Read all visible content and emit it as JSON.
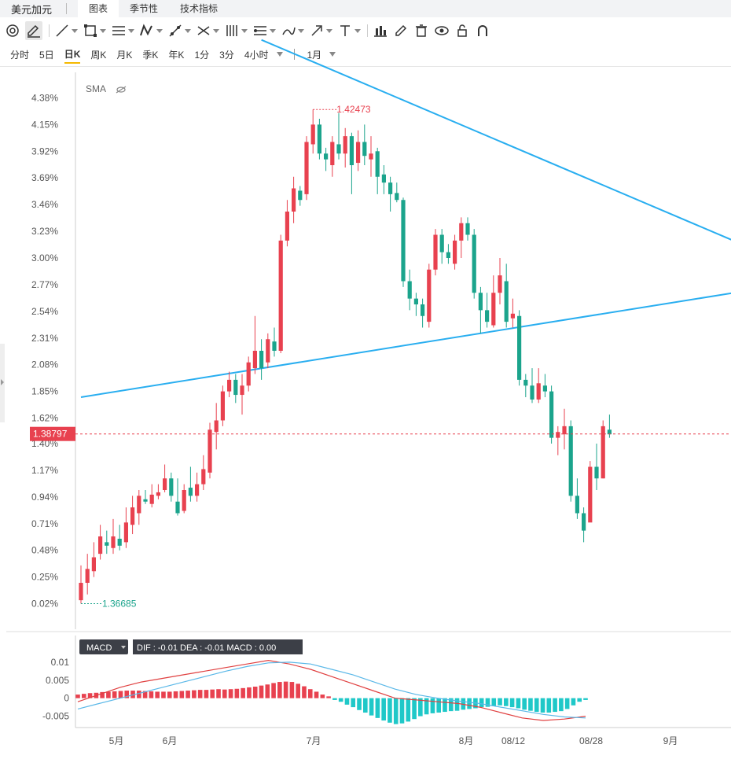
{
  "header": {
    "title": "美元加元",
    "tabs": [
      {
        "label": "图表",
        "active": true
      },
      {
        "label": "季节性",
        "active": false
      },
      {
        "label": "技术指标",
        "active": false
      }
    ]
  },
  "toolbar": {
    "icons": [
      "target-icon",
      "pencil-icon",
      "line-tool-icon",
      "rectangle-icon",
      "parallel-lines-icon",
      "zigzag-icon",
      "ray-icon",
      "cross-lines-icon",
      "pitchfork-icon",
      "fibonacci-icon",
      "brush-icon",
      "arrow-icon",
      "text-icon",
      "bar-chart-icon",
      "edit-icon",
      "trash-icon",
      "eye-icon",
      "lock-icon",
      "magnet-icon"
    ]
  },
  "periods": {
    "items": [
      "分时",
      "5日",
      "日K",
      "周K",
      "月K",
      "季K",
      "年K",
      "1分",
      "3分",
      "4小时"
    ],
    "active": "日K",
    "month_select": "1月"
  },
  "indicator_label": "SMA",
  "price_label": "1.38797",
  "macd_panel": {
    "label": "MACD",
    "readout": "DIF : -0.01   DEA : -0.01   MACD : 0.00"
  },
  "colors": {
    "up": "#e8414f",
    "down": "#1ba48c",
    "trendline": "#29aef0",
    "dif": "#e04040",
    "dea": "#5ab8e8"
  },
  "chart_data": [
    {
      "type": "candlestick",
      "y_axis": {
        "unit": "%",
        "ticks": [
          "4.38%",
          "4.15%",
          "3.92%",
          "3.69%",
          "3.46%",
          "3.23%",
          "3.00%",
          "2.77%",
          "2.54%",
          "2.31%",
          "2.08%",
          "1.85%",
          "1.62%",
          "1.40%",
          "1.17%",
          "0.94%",
          "0.71%",
          "0.48%",
          "0.25%",
          "0.02%"
        ],
        "ylim": [
          -0.2,
          4.6
        ]
      },
      "x_axis": {
        "ticks": [
          "5月",
          "6月",
          "7月",
          "8月",
          "08/12",
          "08/28",
          "9月"
        ]
      },
      "annotations": {
        "high": "1.42473",
        "low": "1.36685",
        "last": "1.38797"
      },
      "candles": [
        [
          0.05,
          0.2,
          0.35,
          0.02
        ],
        [
          0.2,
          0.32,
          0.45,
          0.1
        ],
        [
          0.3,
          0.42,
          0.55,
          0.25
        ],
        [
          0.45,
          0.6,
          0.7,
          0.4
        ],
        [
          0.55,
          0.52,
          0.65,
          0.45
        ],
        [
          0.5,
          0.6,
          0.75,
          0.45
        ],
        [
          0.58,
          0.52,
          0.7,
          0.48
        ],
        [
          0.55,
          0.72,
          0.85,
          0.5
        ],
        [
          0.7,
          0.85,
          0.95,
          0.62
        ],
        [
          0.8,
          0.95,
          1.0,
          0.7
        ],
        [
          0.92,
          0.9,
          1.0,
          0.88
        ],
        [
          0.88,
          0.96,
          1.05,
          0.85
        ],
        [
          0.95,
          0.98,
          1.05,
          0.92
        ],
        [
          1.0,
          1.1,
          1.22,
          0.98
        ],
        [
          1.1,
          0.95,
          1.15,
          0.9
        ],
        [
          0.9,
          0.8,
          1.1,
          0.78
        ],
        [
          0.82,
          1.0,
          1.05,
          0.8
        ],
        [
          1.02,
          0.95,
          1.2,
          0.9
        ],
        [
          0.95,
          1.05,
          1.15,
          0.9
        ],
        [
          1.05,
          1.18,
          1.3,
          1.0
        ],
        [
          1.15,
          1.52,
          1.58,
          1.1
        ],
        [
          1.5,
          1.6,
          1.75,
          1.35
        ],
        [
          1.6,
          1.85,
          1.9,
          1.55
        ],
        [
          1.85,
          1.95,
          2.02,
          1.8
        ],
        [
          1.95,
          1.82,
          2.0,
          1.75
        ],
        [
          1.82,
          1.9,
          2.0,
          1.65
        ],
        [
          1.9,
          2.1,
          2.15,
          1.85
        ],
        [
          2.05,
          2.2,
          2.5,
          2.0
        ],
        [
          2.2,
          2.05,
          2.3,
          1.95
        ],
        [
          2.1,
          2.3,
          2.35,
          2.05
        ],
        [
          2.28,
          2.2,
          2.4,
          2.15
        ],
        [
          2.2,
          3.15,
          3.2,
          2.18
        ],
        [
          3.15,
          3.4,
          3.5,
          3.1
        ],
        [
          3.4,
          3.6,
          3.7,
          3.3
        ],
        [
          3.58,
          3.5,
          3.62,
          3.45
        ],
        [
          3.55,
          4.0,
          4.05,
          3.5
        ],
        [
          3.98,
          4.15,
          4.28,
          3.9
        ],
        [
          4.15,
          3.9,
          4.2,
          3.85
        ],
        [
          3.9,
          3.85,
          3.95,
          3.75
        ],
        [
          3.8,
          4.0,
          4.05,
          3.7
        ],
        [
          3.98,
          3.9,
          4.25,
          3.85
        ],
        [
          3.9,
          4.05,
          4.12,
          3.78
        ],
        [
          4.05,
          3.8,
          4.08,
          3.55
        ],
        [
          3.82,
          4.0,
          4.1,
          3.75
        ],
        [
          4.0,
          3.88,
          4.15,
          3.8
        ],
        [
          3.85,
          3.9,
          4.05,
          3.7
        ],
        [
          3.92,
          3.7,
          3.95,
          3.55
        ],
        [
          3.72,
          3.65,
          3.8,
          3.55
        ],
        [
          3.65,
          3.55,
          3.7,
          3.4
        ],
        [
          3.56,
          3.5,
          3.65,
          3.48
        ],
        [
          3.5,
          2.8,
          3.52,
          2.75
        ],
        [
          2.8,
          2.65,
          2.9,
          2.55
        ],
        [
          2.65,
          2.6,
          2.7,
          2.5
        ],
        [
          2.6,
          2.5,
          2.65,
          2.4
        ],
        [
          2.45,
          2.9,
          2.95,
          2.4
        ],
        [
          2.9,
          3.2,
          3.25,
          2.85
        ],
        [
          3.2,
          3.05,
          3.25,
          2.95
        ],
        [
          3.05,
          3.0,
          3.12,
          2.95
        ],
        [
          2.95,
          3.15,
          3.2,
          2.9
        ],
        [
          3.15,
          3.3,
          3.35,
          3.0
        ],
        [
          3.3,
          3.2,
          3.35,
          3.15
        ],
        [
          3.2,
          2.7,
          3.25,
          2.65
        ],
        [
          2.7,
          2.55,
          2.75,
          2.35
        ],
        [
          2.55,
          2.45,
          2.7,
          2.4
        ],
        [
          2.42,
          2.7,
          2.85,
          2.4
        ],
        [
          2.7,
          2.85,
          3.0,
          2.6
        ],
        [
          2.8,
          2.45,
          2.95,
          2.4
        ],
        [
          2.48,
          2.52,
          2.65,
          2.4
        ],
        [
          2.5,
          1.95,
          2.55,
          1.9
        ],
        [
          1.95,
          1.9,
          2.0,
          1.8
        ],
        [
          1.9,
          1.78,
          2.05,
          1.75
        ],
        [
          1.78,
          1.92,
          2.05,
          1.75
        ],
        [
          1.9,
          1.85,
          2.0,
          1.8
        ],
        [
          1.85,
          1.45,
          1.9,
          1.4
        ],
        [
          1.45,
          1.5,
          1.55,
          1.3
        ],
        [
          1.48,
          1.55,
          1.7,
          1.35
        ],
        [
          1.55,
          0.95,
          1.6,
          0.9
        ],
        [
          0.95,
          0.8,
          1.1,
          0.75
        ],
        [
          0.8,
          0.65,
          0.85,
          0.55
        ],
        [
          0.72,
          1.2,
          1.25,
          0.8
        ],
        [
          1.2,
          1.1,
          1.4,
          1.0
        ],
        [
          1.1,
          1.55,
          1.6,
          1.1
        ],
        [
          1.52,
          1.48,
          1.65,
          1.45
        ]
      ],
      "trendlines": [
        {
          "from": [
            0,
            1.8
          ],
          "to": [
            152,
            3.15
          ]
        },
        {
          "from": [
            28,
            4.88
          ],
          "to": [
            152,
            1.95
          ]
        }
      ]
    },
    {
      "type": "macd",
      "y_axis": {
        "ticks": [
          "0.01",
          "0.005",
          "0",
          "-0.005"
        ],
        "ylim": [
          -0.0075,
          0.0115
        ]
      },
      "histogram": [
        0.001,
        0.0012,
        0.0014,
        0.0015,
        0.0017,
        0.0018,
        0.0019,
        0.002,
        0.0021,
        0.0021,
        0.0021,
        0.002,
        0.0019,
        0.0018,
        0.0018,
        0.0018,
        0.0019,
        0.002,
        0.0021,
        0.0022,
        0.0023,
        0.0023,
        0.0024,
        0.0025,
        0.0024,
        0.0025,
        0.0026,
        0.0028,
        0.003,
        0.0032,
        0.0035,
        0.0038,
        0.0042,
        0.0045,
        0.0046,
        0.0045,
        0.004,
        0.0033,
        0.0025,
        0.0018,
        0.001,
        0.0005,
        -0.0005,
        -0.001,
        -0.0018,
        -0.0025,
        -0.0033,
        -0.004,
        -0.0048,
        -0.0055,
        -0.0062,
        -0.0068,
        -0.0072,
        -0.007,
        -0.0065,
        -0.0058,
        -0.005,
        -0.0045,
        -0.0042,
        -0.004,
        -0.0038,
        -0.0036,
        -0.0035,
        -0.0032,
        -0.003,
        -0.0028,
        -0.0025,
        -0.0024,
        -0.0022,
        -0.002,
        -0.0022,
        -0.0025,
        -0.0028,
        -0.0032,
        -0.0035,
        -0.0038,
        -0.004,
        -0.004,
        -0.0038,
        -0.0036,
        -0.003,
        -0.002,
        -0.001,
        -0.0005
      ],
      "dif": [
        -0.001,
        0.001,
        0.003,
        0.0045,
        0.0055,
        0.0065,
        0.0075,
        0.0085,
        0.0095,
        0.0105,
        0.0095,
        0.008,
        0.006,
        0.004,
        0.002,
        0.0,
        -0.0005,
        -0.001,
        -0.0015,
        -0.0025,
        -0.004,
        -0.0055,
        -0.0062,
        -0.0058,
        -0.005
      ],
      "dea": [
        -0.003,
        -0.0015,
        0.0,
        0.0015,
        0.003,
        0.0045,
        0.006,
        0.0075,
        0.0088,
        0.0098,
        0.01,
        0.0095,
        0.008,
        0.0065,
        0.0045,
        0.0025,
        0.001,
        0.0,
        -0.0008,
        -0.0015,
        -0.0025,
        -0.0035,
        -0.0045,
        -0.0052,
        -0.0055
      ]
    }
  ]
}
